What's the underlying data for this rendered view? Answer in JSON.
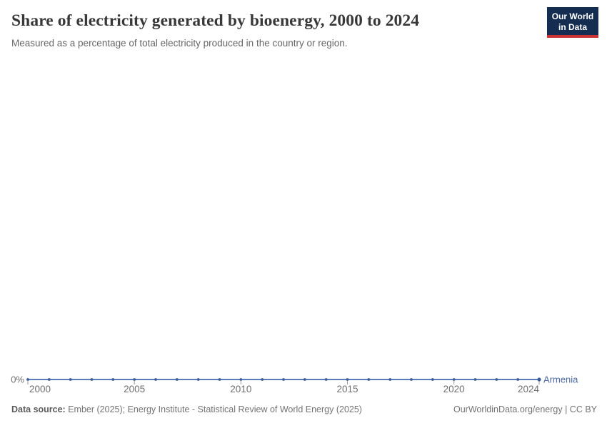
{
  "header": {
    "title": "Share of electricity generated by bioenergy, 2000 to 2024",
    "subtitle": "Measured as a percentage of total electricity produced in the country or region.",
    "logo": {
      "line1": "Our World",
      "line2": "in Data"
    }
  },
  "chart_data": {
    "type": "line",
    "title": "Share of electricity generated by bioenergy, 2000 to 2024",
    "xlabel": "",
    "ylabel": "",
    "x": [
      2000,
      2001,
      2002,
      2003,
      2004,
      2005,
      2006,
      2007,
      2008,
      2009,
      2010,
      2011,
      2012,
      2013,
      2014,
      2015,
      2016,
      2017,
      2018,
      2019,
      2020,
      2021,
      2022,
      2023,
      2024
    ],
    "series": [
      {
        "name": "Armenia",
        "color": "#4B69A5",
        "line_color": "#5B7CB9",
        "marker_color": "#3E5C9C",
        "values": [
          0,
          0,
          0,
          0,
          0,
          0,
          0,
          0,
          0,
          0,
          0,
          0,
          0,
          0,
          0,
          0,
          0,
          0,
          0,
          0,
          0,
          0,
          0,
          0,
          0
        ]
      }
    ],
    "x_ticks": [
      2000,
      2005,
      2010,
      2015,
      2020,
      2024
    ],
    "y_ticks": [
      {
        "value": 0,
        "label": "0%"
      }
    ],
    "xlim": [
      2000,
      2024
    ],
    "ylim": [
      0,
      1
    ],
    "grid": false,
    "legend_position": "end-of-line",
    "axis_label_color": "#6e6e6e",
    "tick_color": "#9a9a9a"
  },
  "footer": {
    "source_label": "Data source:",
    "source_text": " Ember (2025); Energy Institute - Statistical Review of World Energy (2025)",
    "link_text": "OurWorldinData.org/energy | CC BY"
  }
}
